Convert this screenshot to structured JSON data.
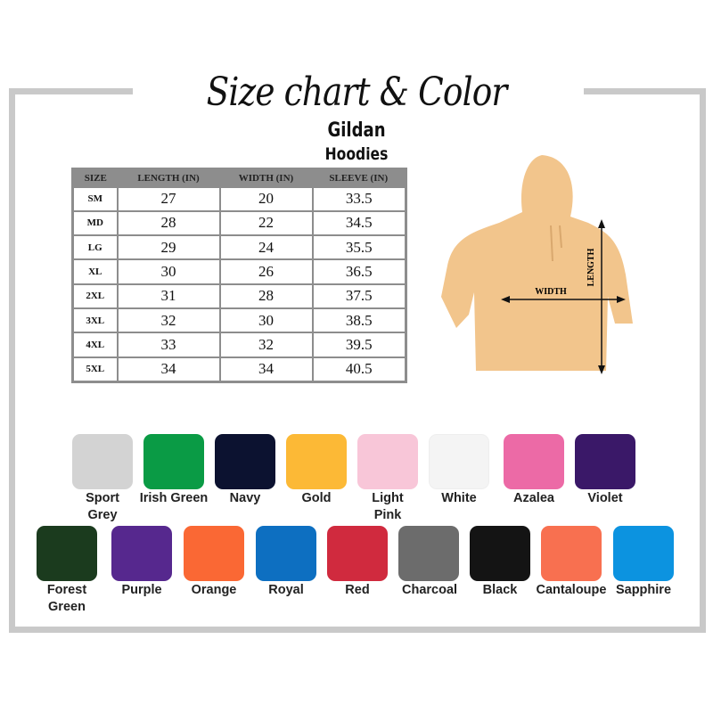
{
  "title": "Size chart & Color",
  "brand": "Gildan",
  "product": "Hoodies",
  "table": {
    "headers": [
      "SIZE",
      "LENGTH (IN)",
      "WIDTH (IN)",
      "SLEEVE (IN)"
    ],
    "rows": [
      [
        "SM",
        "27",
        "20",
        "33.5"
      ],
      [
        "MD",
        "28",
        "22",
        "34.5"
      ],
      [
        "LG",
        "29",
        "24",
        "35.5"
      ],
      [
        "XL",
        "30",
        "26",
        "36.5"
      ],
      [
        "2XL",
        "31",
        "28",
        "37.5"
      ],
      [
        "3XL",
        "32",
        "30",
        "38.5"
      ],
      [
        "4XL",
        "33",
        "32",
        "39.5"
      ],
      [
        "5XL",
        "34",
        "34",
        "40.5"
      ]
    ]
  },
  "diagram": {
    "width_label": "WIDTH",
    "length_label": "LENGTH",
    "hoodie_color": "#f2c58c"
  },
  "colors": [
    {
      "name": "Sport Grey",
      "hex": "#d3d3d3"
    },
    {
      "name": "Irish Green",
      "hex": "#0a9b45"
    },
    {
      "name": "Navy",
      "hex": "#0c1230"
    },
    {
      "name": "Gold",
      "hex": "#fcb936"
    },
    {
      "name": "Light Pink",
      "hex": "#f8c6d8"
    },
    {
      "name": "White",
      "hex": "#f4f4f4"
    },
    {
      "name": "Azalea",
      "hex": "#ec6aa6"
    },
    {
      "name": "Violet",
      "hex": "#3a1868"
    },
    {
      "name": "Forest Green",
      "hex": "#1b3b1e"
    },
    {
      "name": "Purple",
      "hex": "#56288e"
    },
    {
      "name": "Orange",
      "hex": "#fa6834"
    },
    {
      "name": "Royal",
      "hex": "#0d6fc1"
    },
    {
      "name": "Red",
      "hex": "#d02a3e"
    },
    {
      "name": "Charcoal",
      "hex": "#6c6c6c"
    },
    {
      "name": "Black",
      "hex": "#141414"
    },
    {
      "name": "Cantaloupe",
      "hex": "#f87050"
    },
    {
      "name": "Sapphire",
      "hex": "#0c93e0"
    }
  ]
}
